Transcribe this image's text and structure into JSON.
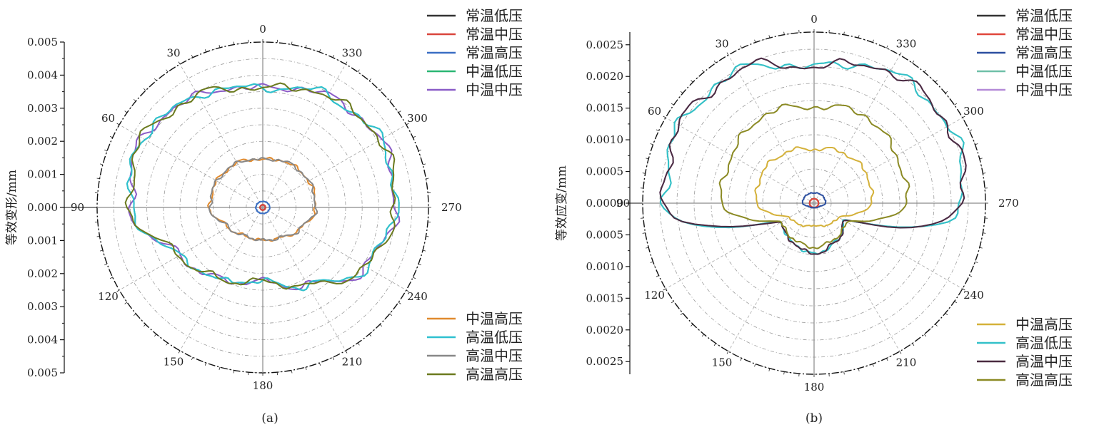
{
  "chart_data": [
    {
      "type": "polar-line",
      "panel_label": "(a)",
      "ylabel": "等效变形/mm",
      "radial_max": 0.005,
      "radial_ticks": [
        "0.005",
        "0.004",
        "0.003",
        "0.002",
        "0.001",
        "0.000",
        "0.001",
        "0.002",
        "0.003",
        "0.004",
        "0.005"
      ],
      "angle_labels": [
        {
          "deg": 0,
          "text": "0"
        },
        {
          "deg": 30,
          "text": "30"
        },
        {
          "deg": 60,
          "text": "60"
        },
        {
          "deg": 90,
          "text": "90"
        },
        {
          "deg": 120,
          "text": "120"
        },
        {
          "deg": 150,
          "text": "150"
        },
        {
          "deg": 180,
          "text": "180"
        },
        {
          "deg": 210,
          "text": "210"
        },
        {
          "deg": 240,
          "text": "240"
        },
        {
          "deg": 270,
          "text": "270"
        },
        {
          "deg": 300,
          "text": "300"
        },
        {
          "deg": 330,
          "text": "330"
        }
      ],
      "angle_direction": "counterclockwise, 0 at top",
      "grid": true,
      "legend_top": [
        "常温低压",
        "常温中压",
        "常温高压",
        "中温低压",
        "中温中压"
      ],
      "legend_bottom": [
        "中温高压",
        "高温低压",
        "高温中压",
        "高温高压"
      ],
      "series": [
        {
          "name": "常温低压",
          "color": "#333333",
          "theta": [
            0,
            30,
            60,
            90,
            120,
            150,
            180,
            210,
            240,
            270,
            300,
            330
          ],
          "r": [
            8e-05,
            8e-05,
            8e-05,
            8e-05,
            8e-05,
            8e-05,
            8e-05,
            8e-05,
            8e-05,
            8e-05,
            8e-05,
            8e-05
          ]
        },
        {
          "name": "常温中压",
          "color": "#d9453d",
          "theta": [
            0,
            30,
            60,
            90,
            120,
            150,
            180,
            210,
            240,
            270,
            300,
            330
          ],
          "r": [
            8e-05,
            8e-05,
            8e-05,
            8e-05,
            8e-05,
            8e-05,
            8e-05,
            8e-05,
            8e-05,
            8e-05,
            8e-05,
            8e-05
          ]
        },
        {
          "name": "常温高压",
          "color": "#3a6fc4",
          "theta": [
            0,
            30,
            60,
            90,
            120,
            150,
            180,
            210,
            240,
            270,
            300,
            330
          ],
          "r": [
            0.00018,
            0.00019,
            0.0002,
            0.00021,
            0.0002,
            0.00019,
            0.00018,
            0.00019,
            0.0002,
            0.00021,
            0.0002,
            0.00019
          ]
        },
        {
          "name": "中温低压",
          "color": "#2bb673",
          "theta": [
            0,
            30,
            60,
            90,
            120,
            150,
            180,
            210,
            240,
            270,
            300,
            330
          ],
          "r": [
            0.0036,
            0.0039,
            0.0042,
            0.004,
            0.0029,
            0.0025,
            0.0022,
            0.0027,
            0.0036,
            0.004,
            0.0041,
            0.0039
          ]
        },
        {
          "name": "中温中压",
          "color": "#8a5cc7",
          "theta": [
            0,
            30,
            60,
            90,
            120,
            150,
            180,
            210,
            240,
            270,
            300,
            330
          ],
          "r": [
            0.0036,
            0.0039,
            0.0042,
            0.004,
            0.0029,
            0.0025,
            0.0022,
            0.0027,
            0.0036,
            0.004,
            0.0041,
            0.0039
          ]
        },
        {
          "name": "中温高压",
          "color": "#e08a2e",
          "theta": [
            0,
            30,
            60,
            90,
            120,
            150,
            180,
            210,
            240,
            270,
            300,
            330
          ],
          "r": [
            0.00145,
            0.00155,
            0.0016,
            0.0016,
            0.0012,
            0.001,
            0.00098,
            0.00105,
            0.0013,
            0.0016,
            0.0016,
            0.00155
          ]
        },
        {
          "name": "高温低压",
          "color": "#2fc0d0",
          "theta": [
            0,
            30,
            60,
            90,
            120,
            150,
            180,
            210,
            240,
            270,
            300,
            330
          ],
          "r": [
            0.0036,
            0.0039,
            0.0042,
            0.004,
            0.0029,
            0.0025,
            0.0022,
            0.0027,
            0.0036,
            0.004,
            0.0041,
            0.0039
          ]
        },
        {
          "name": "高温中压",
          "color": "#888888",
          "theta": [
            0,
            30,
            60,
            90,
            120,
            150,
            180,
            210,
            240,
            270,
            300,
            330
          ],
          "r": [
            0.00145,
            0.00155,
            0.0016,
            0.0016,
            0.0012,
            0.001,
            0.00098,
            0.00105,
            0.0013,
            0.0016,
            0.0016,
            0.00155
          ]
        },
        {
          "name": "高温高压",
          "color": "#6b7a1e",
          "theta": [
            0,
            30,
            60,
            90,
            120,
            150,
            180,
            210,
            240,
            270,
            300,
            330
          ],
          "r": [
            0.0036,
            0.0039,
            0.0042,
            0.004,
            0.0029,
            0.0025,
            0.0022,
            0.0027,
            0.0036,
            0.004,
            0.0041,
            0.0039
          ]
        }
      ]
    },
    {
      "type": "polar-line",
      "panel_label": "(b)",
      "ylabel": "等效应变/mm",
      "radial_max": 0.0027,
      "radial_ticks": [
        "0.0025",
        "0.0020",
        "0.0015",
        "0.0010",
        "0.0005",
        "0.0000",
        "0.0005",
        "0.0010",
        "0.0015",
        "0.0020",
        "0.0025"
      ],
      "radial_tick_values": [
        0.0025,
        0.002,
        0.0015,
        0.001,
        0.0005,
        0,
        0.0005,
        0.001,
        0.0015,
        0.002,
        0.0025
      ],
      "angle_labels": [
        {
          "deg": 0,
          "text": "0"
        },
        {
          "deg": 30,
          "text": "30"
        },
        {
          "deg": 60,
          "text": "60"
        },
        {
          "deg": 90,
          "text": "90"
        },
        {
          "deg": 120,
          "text": "120"
        },
        {
          "deg": 150,
          "text": "150"
        },
        {
          "deg": 180,
          "text": "180"
        },
        {
          "deg": 210,
          "text": "210"
        },
        {
          "deg": 240,
          "text": "240"
        },
        {
          "deg": 270,
          "text": "270"
        },
        {
          "deg": 300,
          "text": "300"
        },
        {
          "deg": 330,
          "text": "330"
        }
      ],
      "angle_direction": "counterclockwise, 0 at top",
      "grid": true,
      "legend_top": [
        "常温低压",
        "常温中压",
        "常温高压",
        "中温低压",
        "中温中压"
      ],
      "legend_bottom": [
        "中温高压",
        "高温低压",
        "高温中压",
        "高温高压"
      ],
      "series": [
        {
          "name": "常温低压",
          "color": "#333333",
          "theta": [
            0,
            30,
            60,
            90,
            120,
            150,
            180,
            210,
            240,
            270,
            300,
            330
          ],
          "r": [
            7e-05,
            7e-05,
            7e-05,
            7e-05,
            7e-05,
            7e-05,
            7e-05,
            7e-05,
            7e-05,
            7e-05,
            7e-05,
            7e-05
          ]
        },
        {
          "name": "常温中压",
          "color": "#e0463c",
          "theta": [
            0,
            30,
            60,
            90,
            120,
            150,
            180,
            210,
            240,
            270,
            300,
            330
          ],
          "r": [
            7e-05,
            7e-05,
            7e-05,
            7e-05,
            7e-05,
            7e-05,
            7e-05,
            7e-05,
            7e-05,
            7e-05,
            7e-05,
            7e-05
          ]
        },
        {
          "name": "常温高压",
          "color": "#2c4fa0",
          "theta": [
            0,
            30,
            60,
            90,
            120,
            150,
            180,
            210,
            240,
            270,
            300,
            330
          ],
          "r": [
            0.00016,
            0.00017,
            0.00018,
            0.00018,
            0.0001,
            8e-05,
            7e-05,
            8e-05,
            0.0001,
            0.00018,
            0.00018,
            0.00017
          ]
        },
        {
          "name": "中温低压",
          "color": "#6fc0a8",
          "theta": [
            0,
            30,
            60,
            90,
            120,
            150,
            180,
            210,
            240,
            270,
            300,
            330
          ],
          "r": [
            0.00215,
            0.0024,
            0.00245,
            0.00235,
            0.0006,
            0.0007,
            0.0008,
            0.0007,
            0.00055,
            0.00235,
            0.00245,
            0.0024
          ]
        },
        {
          "name": "中温中压",
          "color": "#b48ad8",
          "theta": [
            0,
            30,
            60,
            90,
            120,
            150,
            180,
            210,
            240,
            270,
            300,
            330
          ],
          "r": [
            0.00215,
            0.0024,
            0.00245,
            0.00235,
            0.0006,
            0.0007,
            0.0008,
            0.0007,
            0.00055,
            0.00235,
            0.00245,
            0.0024
          ]
        },
        {
          "name": "中温高压",
          "color": "#d4b13a",
          "theta": [
            0,
            30,
            60,
            90,
            120,
            150,
            180,
            210,
            240,
            270,
            300,
            330
          ],
          "r": [
            0.00085,
            0.00092,
            0.00095,
            0.0009,
            0.00045,
            0.0004,
            0.00035,
            0.0004,
            0.00045,
            0.0009,
            0.00095,
            0.00092
          ]
        },
        {
          "name": "高温低压",
          "color": "#33c1c9",
          "theta": [
            0,
            30,
            60,
            90,
            120,
            150,
            180,
            210,
            240,
            270,
            300,
            330
          ],
          "r": [
            0.00215,
            0.0024,
            0.00245,
            0.00235,
            0.0006,
            0.0007,
            0.0008,
            0.0007,
            0.00055,
            0.00235,
            0.00245,
            0.0024
          ]
        },
        {
          "name": "高温中压",
          "color": "#4a2b40",
          "theta": [
            0,
            30,
            60,
            90,
            120,
            150,
            180,
            210,
            240,
            270,
            300,
            330
          ],
          "r": [
            0.00215,
            0.0024,
            0.00245,
            0.00235,
            0.0006,
            0.0007,
            0.0008,
            0.0007,
            0.00055,
            0.00235,
            0.00245,
            0.0024
          ]
        },
        {
          "name": "高温高压",
          "color": "#8b8a24",
          "theta": [
            0,
            30,
            60,
            90,
            120,
            150,
            180,
            210,
            240,
            270,
            300,
            330
          ],
          "r": [
            0.00152,
            0.0016,
            0.0015,
            0.00145,
            0.0006,
            0.00065,
            0.0007,
            0.00065,
            0.0006,
            0.00145,
            0.0015,
            0.0016
          ]
        }
      ]
    }
  ]
}
